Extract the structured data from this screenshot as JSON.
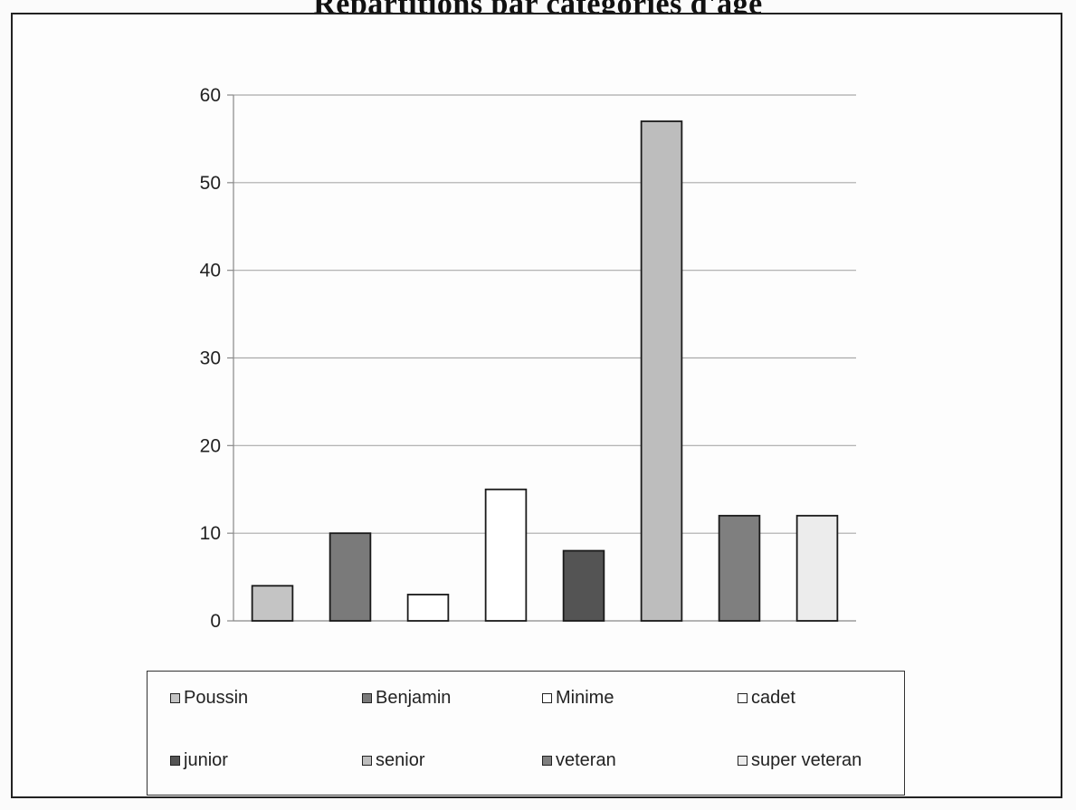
{
  "chart_data": {
    "type": "bar",
    "title": "Répartitions par catégories d'âge",
    "categories": [
      "Poussin",
      "Benjamin",
      "Minime",
      "cadet",
      "junior",
      "senior",
      "veteran",
      "super veteran"
    ],
    "values": [
      4,
      10,
      3,
      15,
      8,
      57,
      12,
      12
    ],
    "colors": [
      "#c4c4c4",
      "#7a7a7a",
      "#ffffff",
      "#ffffff",
      "#545454",
      "#bdbdbd",
      "#7f7f7f",
      "#ececec"
    ],
    "ylim": [
      0,
      60
    ],
    "yticks": [
      "0",
      "10",
      "20",
      "30",
      "40",
      "50",
      "60"
    ],
    "grid": true,
    "legend": "bottom"
  }
}
